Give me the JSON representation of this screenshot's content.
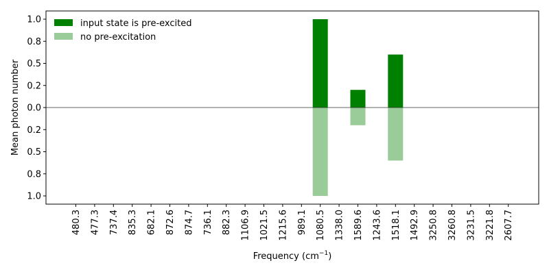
{
  "chart_data": {
    "type": "bar",
    "title": "",
    "xlabel": "Frequency (cm",
    "xlabel_sup": "−1",
    "xlabel_close": ")",
    "ylabel": "Mean photon number",
    "categories": [
      "480.3",
      "477.3",
      "737.4",
      "835.3",
      "682.1",
      "872.6",
      "874.7",
      "736.1",
      "882.3",
      "1106.9",
      "1021.5",
      "1215.6",
      "989.1",
      "1080.5",
      "1338.0",
      "1589.6",
      "1243.6",
      "1518.1",
      "1492.9",
      "3250.8",
      "3260.8",
      "3231.5",
      "3221.8",
      "2607.7"
    ],
    "ytick_labels": [
      "1.0",
      "0.8",
      "0.5",
      "0.2",
      "0.0",
      "0.2",
      "0.5",
      "0.8",
      "1.0"
    ],
    "ytick_values": [
      1.0,
      0.75,
      0.5,
      0.25,
      0.0,
      -0.25,
      -0.5,
      -0.75,
      -1.0
    ],
    "ylim": [
      -1.1,
      1.1
    ],
    "legend_position": "top-left",
    "series": [
      {
        "name": "input state is pre-excited",
        "color": "#008000",
        "direction": "up",
        "values": [
          0,
          0,
          0,
          0,
          0,
          0,
          0,
          0,
          0,
          0,
          0,
          0,
          0,
          1.0,
          0,
          0.2,
          0,
          0.6,
          0,
          0,
          0,
          0,
          0,
          0
        ]
      },
      {
        "name": "no pre-excitation",
        "color": "#99cc99",
        "direction": "down",
        "values": [
          0,
          0,
          0,
          0,
          0,
          0,
          0,
          0,
          0,
          0,
          0,
          0,
          0,
          1.0,
          0,
          0.2,
          0,
          0.6,
          0,
          0,
          0,
          0,
          0,
          0
        ]
      }
    ]
  }
}
